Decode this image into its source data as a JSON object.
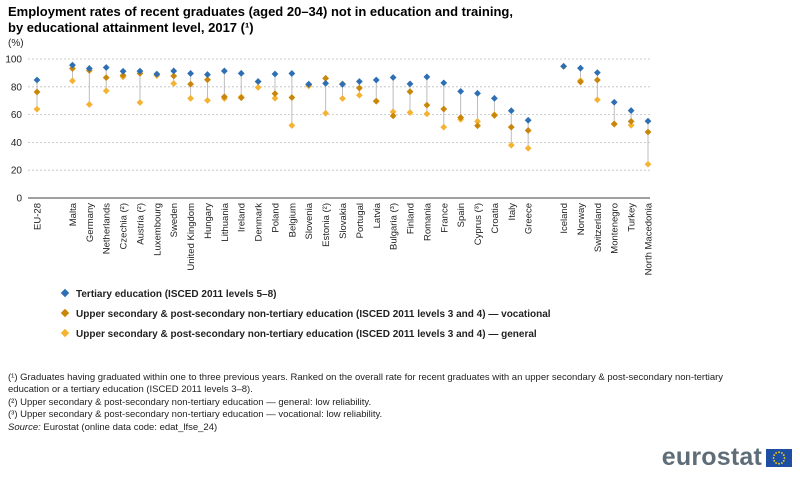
{
  "title_line1": "Employment rates of recent graduates (aged 20–34) not in education and training,",
  "title_line2": "by educational attainment level, 2017 (¹)",
  "colors": {
    "tertiary": "#2e6fb4",
    "vocational": "#c8860b",
    "general": "#f5b334",
    "grid": "#bfbfbf",
    "connector": "#bdbdbd"
  },
  "chart_data": {
    "type": "scatter",
    "ylabel": "(%)",
    "ylim": [
      0,
      100
    ],
    "yticks": [
      0,
      20,
      40,
      60,
      80,
      100
    ],
    "grid": true,
    "legend_position": "bottom-left",
    "categories": [
      "EU-28",
      "Malta",
      "Germany",
      "Netherlands",
      "Czechia (²)",
      "Austria (²)",
      "Luxembourg",
      "Sweden",
      "United Kingdom",
      "Hungary",
      "Lithuania",
      "Ireland",
      "Denmark",
      "Poland",
      "Belgium",
      "Slovenia",
      "Estonia (²)",
      "Slovakia",
      "Portugal",
      "Latvia",
      "Bulgaria (³)",
      "Finland",
      "Romania",
      "France",
      "Spain",
      "Cyprus (³)",
      "Croatia",
      "Italy",
      "Greece",
      "Iceland",
      "Norway",
      "Switzerland",
      "Montenegro",
      "Turkey",
      "North Macedonia"
    ],
    "gap_after_index": [
      0,
      28
    ],
    "series": [
      {
        "name": "Tertiary education (ISCED 2011 levels 5–8)",
        "key": "tertiary",
        "values": [
          84.9,
          95.6,
          93.2,
          93.9,
          91.2,
          91.3,
          89.1,
          91.4,
          89.6,
          88.8,
          91.4,
          89.7,
          83.8,
          89.2,
          89.6,
          81.9,
          82.5,
          81.8,
          83.8,
          84.9,
          86.7,
          82.1,
          87.1,
          82.8,
          76.7,
          75.3,
          71.7,
          62.8,
          55.9,
          94.8,
          93.4,
          90.2,
          68.9,
          62.9,
          55.3
        ]
      },
      {
        "name": "Upper secondary & post-secondary  non-tertiary  education (ISCED 2011 levels 3 and 4) — vocational",
        "key": "vocational",
        "values": [
          76.3,
          93.2,
          91.7,
          86.6,
          88.2,
          89.7,
          89.1,
          87.8,
          81.9,
          85.1,
          72.8,
          72.1,
          83.7,
          75.1,
          72.3,
          81.5,
          86.1,
          82.1,
          79.1,
          69.6,
          59.1,
          76.5,
          66.8,
          64.0,
          57.9,
          52.0,
          59.4,
          51.0,
          48.6,
          null,
          83.5,
          84.9,
          53.3,
          55.1,
          47.5
        ]
      },
      {
        "name": "Upper secondary & post-secondary  non-tertiary  education (ISCED 2011 levels 3 and 4) — general",
        "key": "general",
        "values": [
          63.9,
          84.3,
          67.3,
          77.1,
          87.2,
          68.7,
          88.1,
          82.4,
          71.7,
          70.2,
          71.6,
          72.7,
          79.6,
          71.8,
          52.2,
          80.7,
          61.0,
          71.6,
          73.9,
          69.8,
          62.0,
          61.5,
          60.5,
          51.0,
          56.6,
          55.1,
          60.0,
          38.0,
          35.8,
          94.6,
          84.4,
          70.7,
          53.1,
          52.3,
          24.3
        ]
      }
    ]
  },
  "legend": [
    {
      "key": "tertiary",
      "label": "Tertiary education (ISCED 2011 levels 5–8)"
    },
    {
      "key": "vocational",
      "label": "Upper secondary & post-secondary  non-tertiary  education (ISCED 2011 levels 3 and 4) — vocational"
    },
    {
      "key": "general",
      "label": "Upper secondary & post-secondary  non-tertiary  education (ISCED 2011 levels 3 and 4) — general"
    }
  ],
  "notes": {
    "n1a": "(¹) Graduates having graduated within one to three previous years. Ranked on the overall rate for recent graduates with an upper secondary & post-secondary non-tertiary",
    "n1b": "education or a tertiary education (ISCED 2011 levels 3–8).",
    "n2": "(²) Upper secondary & post-secondary non-tertiary education — general: low reliability.",
    "n3": "(³) Upper secondary & post-secondary non-tertiary education — vocational: low reliability.",
    "source_label": "Source:",
    "source_text": "Eurostat (online data code: edat_lfse_24)"
  },
  "brand": {
    "name": "eurostat",
    "logo": "eu-flag-icon"
  }
}
